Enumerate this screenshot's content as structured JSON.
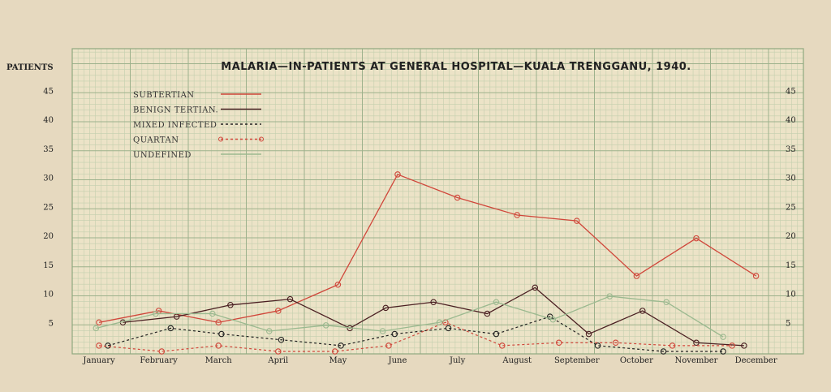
{
  "chart_data": {
    "type": "line",
    "title": "MALARIA—IN-PATIENTS AT GENERAL HOSPITAL—KUALA TRENGGANU, 1940.",
    "ylabel": "PATIENTS",
    "xlabel": "",
    "ylim": [
      0,
      45
    ],
    "yticks": [
      "5",
      "10",
      "15",
      "20",
      "25",
      "30",
      "35",
      "40",
      "45"
    ],
    "categories": [
      "January",
      "February",
      "March",
      "April",
      "May",
      "June",
      "July",
      "August",
      "September",
      "October",
      "November",
      "December"
    ],
    "grid": true,
    "legend_position": "top-left",
    "series": [
      {
        "name": "SUBTERTIAN",
        "color": "#d0463a",
        "style": "solid",
        "markers": "circle",
        "x": [
          0,
          1,
          2,
          3,
          4,
          5,
          6,
          7,
          8,
          9,
          10,
          11
        ],
        "values": [
          5,
          7,
          5,
          7,
          11.5,
          30.5,
          26.5,
          23.5,
          22.5,
          13,
          19.5,
          13
        ]
      },
      {
        "name": "BENIGN TERTIAN.",
        "color": "#4a1f22",
        "style": "solid",
        "markers": "circle",
        "x": [
          0.4,
          1.3,
          2.2,
          3.2,
          4.2,
          4.8,
          5.6,
          6.5,
          7.3,
          8.2,
          9.1,
          10.0,
          10.8
        ],
        "values": [
          5,
          6,
          8,
          9,
          4,
          7.5,
          8.5,
          6.5,
          11,
          3,
          7,
          1.5,
          1
        ]
      },
      {
        "name": "MIXED INFECTED",
        "color": "#222222",
        "style": "dashed",
        "markers": "circle",
        "x": [
          0.15,
          1.2,
          2.05,
          3.05,
          4.05,
          4.95,
          5.85,
          6.65,
          7.55,
          8.35,
          9.45,
          10.45
        ],
        "values": [
          1,
          4,
          3,
          2,
          1,
          3,
          4,
          3,
          6,
          1,
          0,
          0
        ]
      },
      {
        "name": "QUARTAN",
        "color": "#d0463a",
        "style": "dashed",
        "markers": "circle",
        "x": [
          0,
          1.05,
          2.0,
          3.0,
          3.95,
          4.85,
          5.8,
          6.75,
          7.7,
          8.65,
          9.6,
          10.6
        ],
        "values": [
          1,
          0,
          1,
          0,
          0,
          1,
          5,
          1,
          1.5,
          1.5,
          1,
          1
        ]
      },
      {
        "name": "UNDEFINED",
        "color": "#9bb98f",
        "style": "solid",
        "markers": "circle",
        "x": [
          -0.05,
          0.95,
          1.9,
          2.85,
          3.8,
          4.75,
          5.7,
          6.65,
          7.6,
          8.55,
          9.5,
          10.45
        ],
        "values": [
          4,
          6.5,
          6.5,
          3.5,
          4.5,
          3.5,
          5,
          8.5,
          5.5,
          9.5,
          8.5,
          2.5
        ]
      }
    ]
  }
}
